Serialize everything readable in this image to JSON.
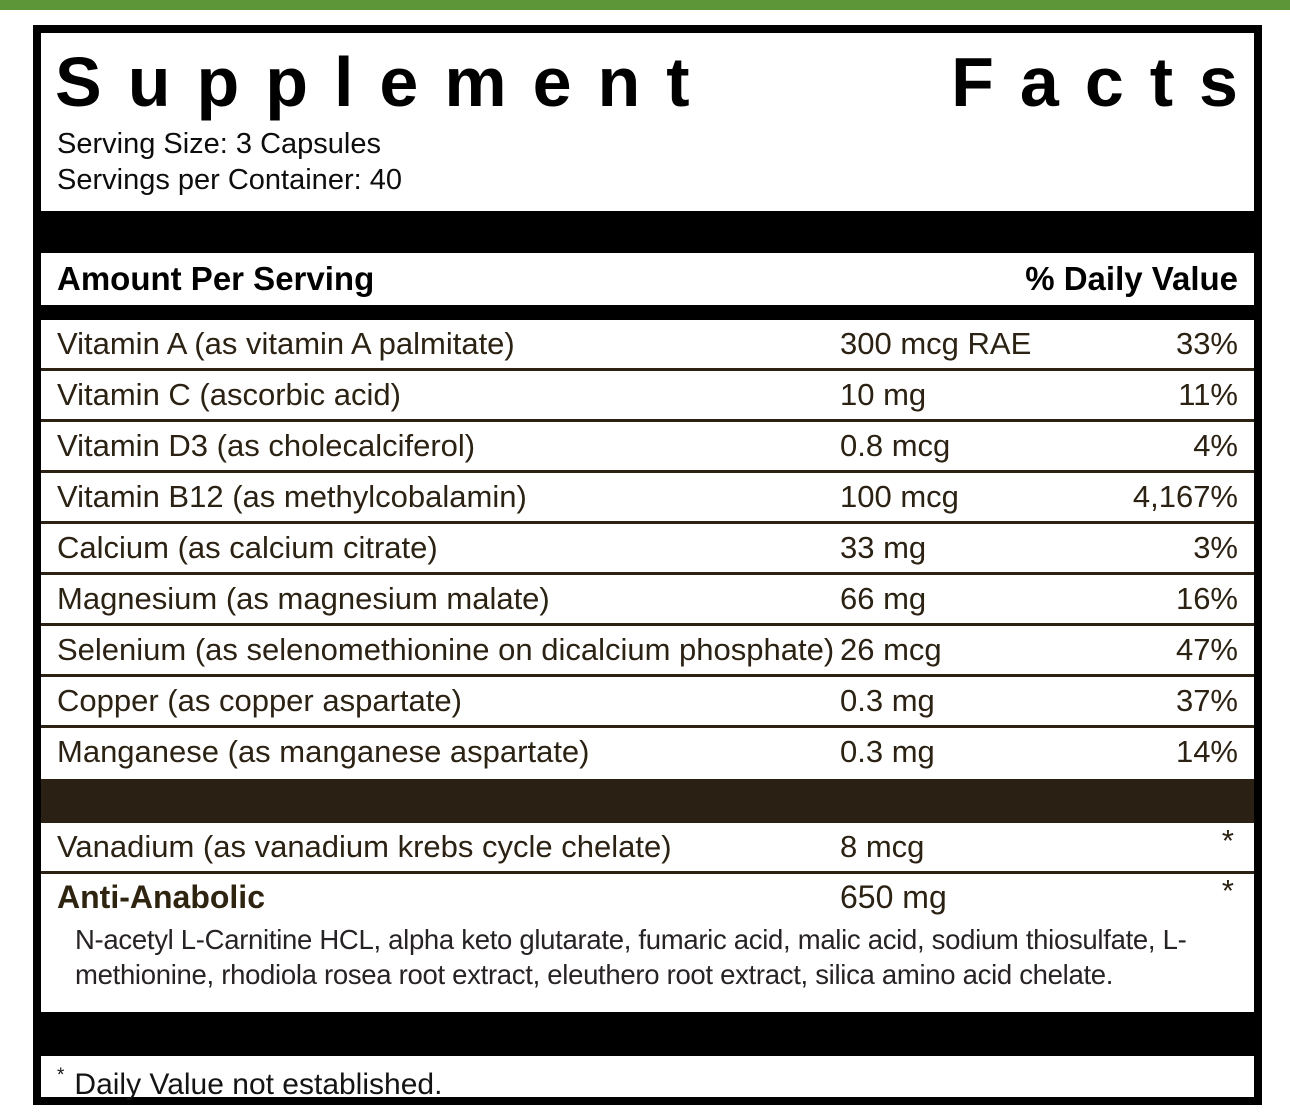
{
  "title": {
    "word1": "Supplement",
    "word2": "Facts"
  },
  "serving": {
    "size": "Serving Size: 3 Capsules",
    "per_container": "Servings per Container: 40"
  },
  "header": {
    "amount_label": "Amount Per Serving",
    "dv_label": "% Daily Value"
  },
  "nutrients": [
    {
      "name": "Vitamin A (as vitamin A palmitate)",
      "amount": "300 mcg RAE",
      "dv": "33%"
    },
    {
      "name": "Vitamin C (ascorbic acid)",
      "amount": "10 mg",
      "dv": "11%"
    },
    {
      "name": "Vitamin D3 (as cholecalciferol)",
      "amount": "0.8 mcg",
      "dv": "4%"
    },
    {
      "name": "Vitamin B12 (as methylcobalamin)",
      "amount": "100 mcg",
      "dv": "4,167%"
    },
    {
      "name": "Calcium (as calcium citrate)",
      "amount": "33 mg",
      "dv": "3%"
    },
    {
      "name": "Magnesium (as magnesium malate)",
      "amount": "66 mg",
      "dv": "16%"
    },
    {
      "name": "Selenium (as selenomethionine on dicalcium phosphate)",
      "amount": "26 mcg",
      "dv": "47%"
    },
    {
      "name": "Copper (as copper aspartate)",
      "amount": "0.3 mg",
      "dv": "37%"
    },
    {
      "name": "Manganese (as manganese aspartate)",
      "amount": "0.3 mg",
      "dv": "14%"
    }
  ],
  "secondary": [
    {
      "name": "Vanadium (as vanadium krebs cycle chelate)",
      "amount": "8 mcg",
      "dv": "*"
    }
  ],
  "blend": {
    "name": "Anti-Anabolic",
    "amount": "650 mg",
    "dv": "*",
    "ingredients": "N-acetyl L-Carnitine HCL, alpha keto glutarate, fumaric acid, malic acid, sodium thiosulfate, L-methionine, rhodiola rosea root extract, eleuthero root extract, silica amino acid chelate."
  },
  "footnote": {
    "symbol": "*",
    "text": "Daily Value not established."
  },
  "colors": {
    "accent_green": "#5c9638",
    "bar_black": "#000000",
    "bar_brown": "#2a2013",
    "nutrient_text": "#2b2213"
  }
}
